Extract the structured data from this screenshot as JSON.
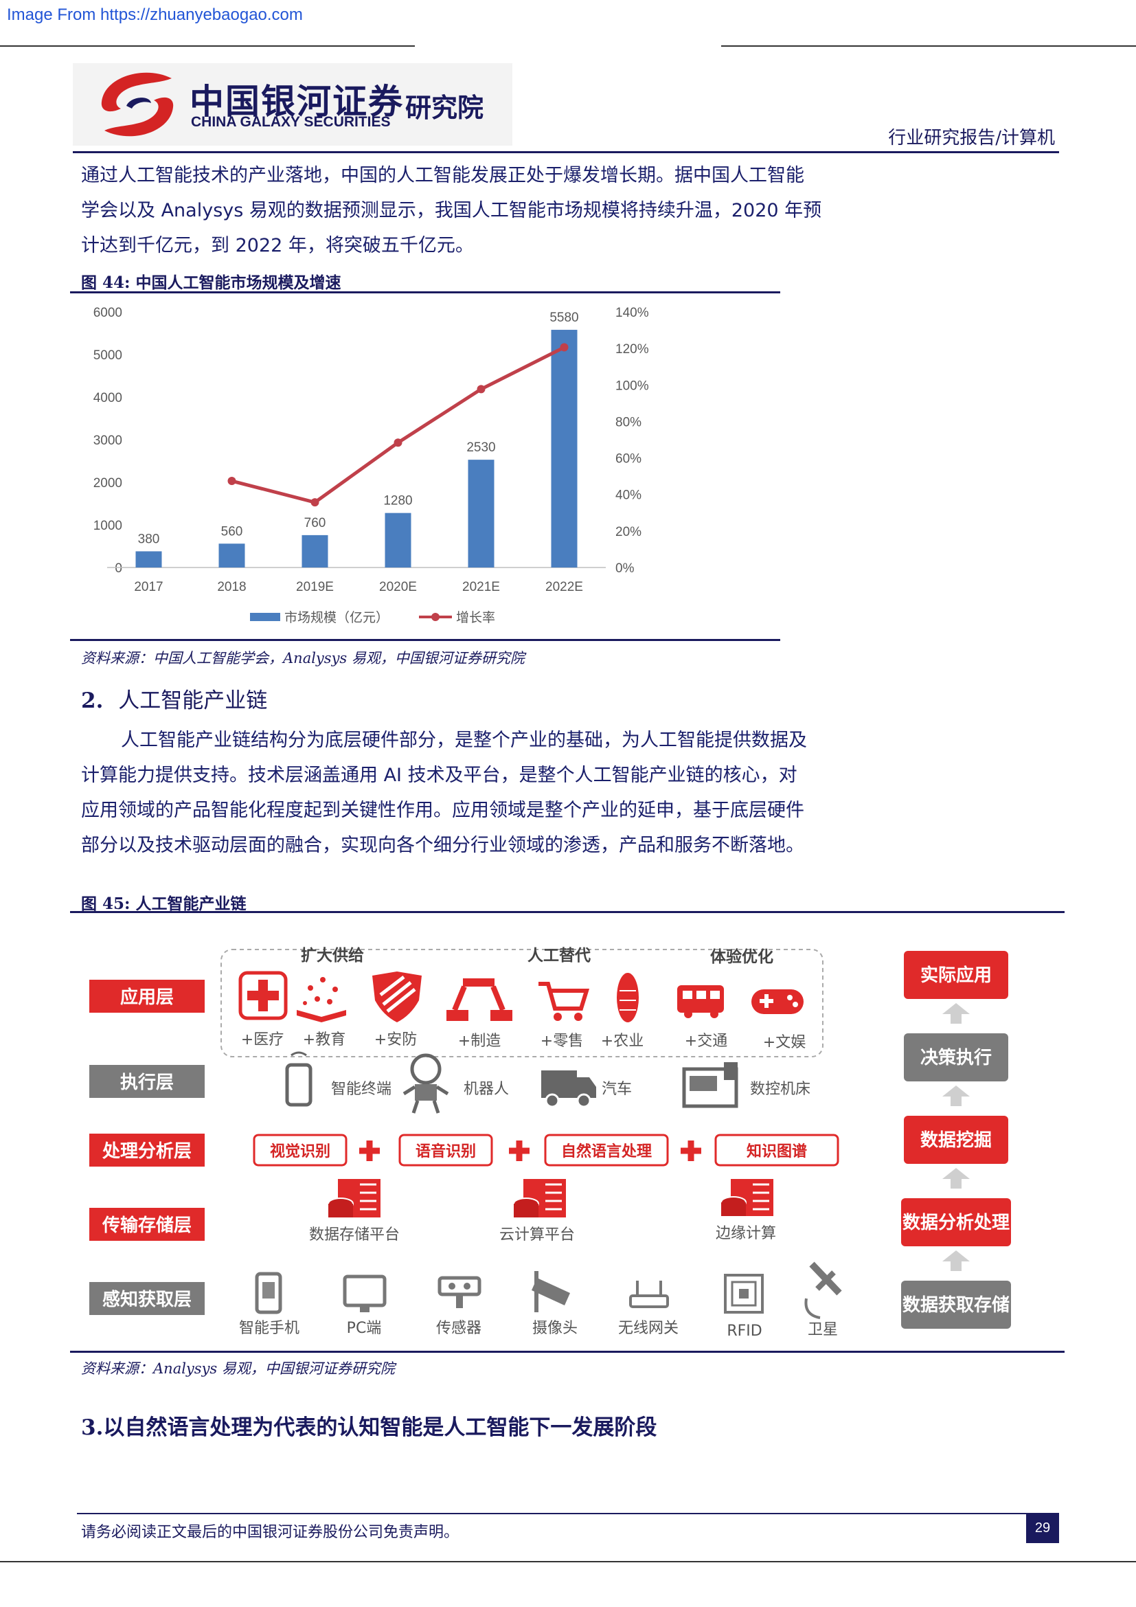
{
  "watermark": "Image From https://zhuanyebaogao.com",
  "header": {
    "logo_cn": "中国银河证券",
    "logo_en": "CHINA GALAXY SECURITIES",
    "logo_sub": "研究院",
    "category": "行业研究报告/计算机"
  },
  "intro_lines": [
    "通过人工智能技术的产业落地，中国的人工智能发展正处于爆发增长期。据中国人工智能",
    "学会以及 Analysys 易观的数据预测显示，我国人工智能市场规模将持续升温，2020 年预",
    "计达到千亿元，到 2022 年，将突破五千亿元。"
  ],
  "figure44": {
    "title": "图 44: 中国人工智能市场规模及增速",
    "source": "资料来源：中国人工智能学会，Analysys 易观，中国银河证券研究院"
  },
  "chart_data": {
    "type": "bar",
    "title": "",
    "categories": [
      "2017",
      "2018",
      "2019E",
      "2020E",
      "2021E",
      "2022E"
    ],
    "series": [
      {
        "name": "市场规模（亿元）",
        "type": "bar",
        "axis": "left",
        "color": "#4a7ebf",
        "values": [
          380,
          560,
          760,
          1280,
          2530,
          5580
        ],
        "data_labels": [
          "380",
          "560",
          "760",
          "1280",
          "2530",
          "5580"
        ]
      },
      {
        "name": "增长率",
        "type": "line",
        "axis": "right",
        "color": "#c0404a",
        "values": [
          null,
          47.4,
          35.7,
          68.4,
          97.7,
          120.6
        ]
      }
    ],
    "y_left": {
      "min": 0,
      "max": 6000,
      "ticks": [
        "0",
        "1000",
        "2000",
        "3000",
        "4000",
        "5000",
        "6000"
      ]
    },
    "y_right": {
      "min": 0,
      "max": 140,
      "ticks": [
        "0%",
        "20%",
        "40%",
        "60%",
        "80%",
        "100%",
        "120%",
        "140%"
      ]
    },
    "grid": false,
    "legend": "bottom"
  },
  "section2": {
    "heading_num": "2.",
    "heading_text": "人工智能产业链",
    "para_lines": [
      "人工智能产业链结构分为底层硬件部分，是整个产业的基础，为人工智能提供数据及",
      "计算能力提供支持。技术层涵盖通用 AI 技术及平台，是整个人工智能产业链的核心，对",
      "应用领域的产品智能化程度起到关键性作用。应用领域是整个产业的延申，基于底层硬件",
      "部分以及技术驱动层面的融合，实现向各个细分行业领域的渗透，产品和服务不断落地。"
    ]
  },
  "figure45": {
    "title": "图 45: 人工智能产业链",
    "source": "资料来源：Analysys 易观，中国银河证券研究院",
    "layers": [
      "应用层",
      "执行层",
      "处理分析层",
      "传输存储层",
      "感知获取层"
    ],
    "app_groups": [
      "扩大供给",
      "人工替代",
      "体验优化"
    ],
    "app_items": [
      "+医疗",
      "+教育",
      "+安防",
      "+制造",
      "+零售",
      "+农业",
      "+交通",
      "+文娱"
    ],
    "exec_items": [
      "智能终端",
      "机器人",
      "汽车",
      "数控机床"
    ],
    "process_items": [
      "视觉识别",
      "语音识别",
      "自然语言处理",
      "知识图谱"
    ],
    "storage_items": [
      "数据存储平台",
      "云计算平台",
      "边缘计算"
    ],
    "sense_items": [
      "智能手机",
      "PC端",
      "传感器",
      "摄像头",
      "无线网关",
      "RFID",
      "卫星"
    ],
    "flow": [
      "实际应用",
      "决策执行",
      "数据挖掘",
      "数据分析处理",
      "数据获取存储"
    ]
  },
  "section3": {
    "heading": "3.以自然语言处理为代表的认知智能是人工智能下一发展阶段"
  },
  "footer": {
    "disclaimer": "请务必阅读正文最后的中国银河证券股份公司免责声明。",
    "page_number": "29"
  }
}
